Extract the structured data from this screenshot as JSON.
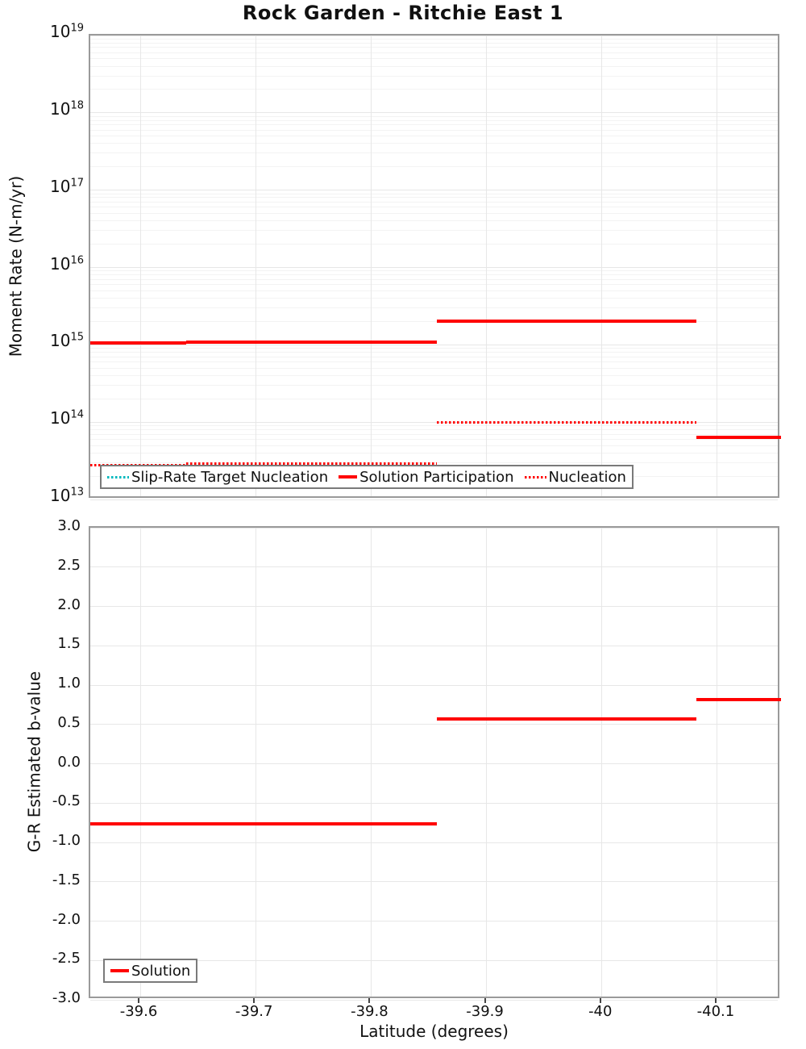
{
  "title": "Rock Garden - Ritchie East 1",
  "x_axis": {
    "label": "Latitude (degrees)",
    "lim": [
      -39.5567,
      -40.1552
    ],
    "ticks": [
      {
        "v": -39.6,
        "label": "-39.6"
      },
      {
        "v": -39.7,
        "label": "-39.7"
      },
      {
        "v": -39.8,
        "label": "-39.8"
      },
      {
        "v": -39.9,
        "label": "-39.9"
      },
      {
        "v": -40.0,
        "label": "-40"
      },
      {
        "v": -40.1,
        "label": "-40.1"
      }
    ]
  },
  "colors": {
    "solution": "#ff0000",
    "nucleation": "#ff0000",
    "slip_rate_target": "#00b8be",
    "grid_major": "#e7e7e7",
    "grid_minor": "#f3f3f3",
    "axis_border": "#9a9a9a",
    "tick_mark": "#444444",
    "legend_border": "#7a7a7a"
  },
  "chart_data": [
    {
      "type": "line",
      "subtype": "horizontal-step-segments",
      "title": "Rock Garden - Ritchie East 1",
      "xlabel": "Latitude (degrees)",
      "ylabel": "Moment Rate (N-m/yr)",
      "x_reversed": true,
      "xlim": [
        -39.5567,
        -40.1552
      ],
      "yscale": "log",
      "ylim": [
        10000000000000.0,
        1e+19
      ],
      "ytick_exponents": [
        "19",
        "18",
        "17",
        "16",
        "15",
        "14",
        "13"
      ],
      "grid": true,
      "legend_position": "bottom-left-inside",
      "series": [
        {
          "name": "Slip-Rate Target Nucleation",
          "color": "#00b8be",
          "style": "dotted",
          "segments": []
        },
        {
          "name": "Solution Participation",
          "color": "#ff0000",
          "style": "solid",
          "segments": [
            {
              "x": [
                -39.557,
                -39.64
              ],
              "y": 1050000000000000.0
            },
            {
              "x": [
                -39.64,
                -39.745
              ],
              "y": 1080000000000000.0
            },
            {
              "x": [
                -39.745,
                -39.857
              ],
              "y": 1080000000000000.0
            },
            {
              "x": [
                -39.857,
                -39.968
              ],
              "y": 2000000000000000.0
            },
            {
              "x": [
                -39.968,
                -40.082
              ],
              "y": 2000000000000000.0
            },
            {
              "x": [
                -40.082,
                -40.155
              ],
              "y": 64000000000000.0
            }
          ]
        },
        {
          "name": "Nucleation",
          "color": "#ff0000",
          "style": "dotted",
          "segments": [
            {
              "x": [
                -39.557,
                -39.64
              ],
              "y": 28000000000000.0
            },
            {
              "x": [
                -39.64,
                -39.857
              ],
              "y": 29000000000000.0
            },
            {
              "x": [
                -39.857,
                -40.082
              ],
              "y": 100000000000000.0
            }
          ]
        }
      ]
    },
    {
      "type": "line",
      "subtype": "horizontal-step-segments",
      "xlabel": "Latitude (degrees)",
      "ylabel": "G-R Estimated b-value",
      "x_reversed": true,
      "xlim": [
        -39.5567,
        -40.1552
      ],
      "yscale": "linear",
      "ylim": [
        -3.0,
        3.0
      ],
      "ytick_values": [
        3.0,
        2.5,
        2.0,
        1.5,
        1.0,
        0.5,
        0.0,
        -0.5,
        -1.0,
        -1.5,
        -2.0,
        -2.5,
        -3.0
      ],
      "ytick_labels": [
        "3.0",
        "2.5",
        "2.0",
        "1.5",
        "1.0",
        "0.5",
        "0.0",
        "-0.5",
        "-1.0",
        "-1.5",
        "-2.0",
        "-2.5",
        "-3.0"
      ],
      "grid": true,
      "legend_position": "bottom-left-inside",
      "series": [
        {
          "name": "Solution",
          "color": "#ff0000",
          "style": "solid",
          "segments": [
            {
              "x": [
                -39.557,
                -39.64
              ],
              "y": -0.76
            },
            {
              "x": [
                -39.64,
                -39.745
              ],
              "y": -0.76
            },
            {
              "x": [
                -39.745,
                -39.857
              ],
              "y": -0.76
            },
            {
              "x": [
                -39.857,
                -39.968
              ],
              "y": 0.57
            },
            {
              "x": [
                -39.968,
                -40.082
              ],
              "y": 0.57
            },
            {
              "x": [
                -40.082,
                -40.155
              ],
              "y": 0.82
            }
          ]
        }
      ]
    }
  ]
}
